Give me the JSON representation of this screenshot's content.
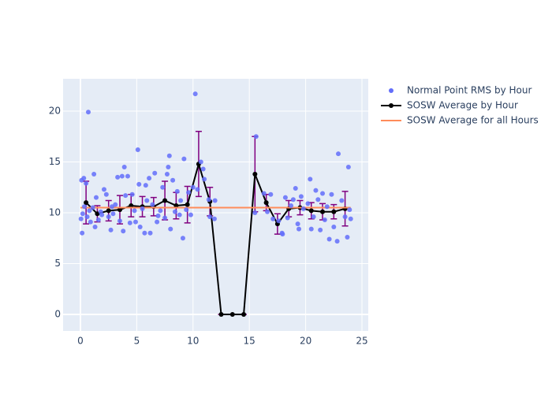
{
  "chart_data": {
    "type": "scatter-line",
    "xlim": [
      -1.54,
      25.56
    ],
    "ylim": [
      -1.63,
      23.18
    ],
    "xticks": [
      0,
      5,
      10,
      15,
      20,
      25
    ],
    "yticks": [
      0,
      5,
      10,
      15,
      20
    ],
    "grid": true,
    "legend": "top-right",
    "series": [
      {
        "name": "Normal Point RMS by Hour",
        "kind": "markers",
        "color": "#636efa",
        "x": [
          0.05,
          0.1,
          0.15,
          0.2,
          0.3,
          0.35,
          0.5,
          0.6,
          0.7,
          0.8,
          0.9,
          1.1,
          1.2,
          1.3,
          1.4,
          1.6,
          1.8,
          1.9,
          2.1,
          2.3,
          2.5,
          2.7,
          2.8,
          2.9,
          3.1,
          3.3,
          3.5,
          3.7,
          3.8,
          3.9,
          4.0,
          4.2,
          4.4,
          4.6,
          4.8,
          4.9,
          5.1,
          5.2,
          5.3,
          5.5,
          5.7,
          5.8,
          5.9,
          6.1,
          6.2,
          6.4,
          6.6,
          6.8,
          6.9,
          7.1,
          7.3,
          7.5,
          7.7,
          7.8,
          7.9,
          8.0,
          8.2,
          8.4,
          8.6,
          8.8,
          8.9,
          9.1,
          9.2,
          9.4,
          9.6,
          9.8,
          10.0,
          10.2,
          10.4,
          10.7,
          10.9,
          11.0,
          11.4,
          11.5,
          11.9,
          11.95,
          15.5,
          15.6,
          16.3,
          16.6,
          16.9,
          17.1,
          17.6,
          17.9,
          17.95,
          18.2,
          18.4,
          18.7,
          18.9,
          19.1,
          19.3,
          19.4,
          19.6,
          19.8,
          20.2,
          20.4,
          20.5,
          20.7,
          20.9,
          21.1,
          21.3,
          21.5,
          21.7,
          21.9,
          22.1,
          22.3,
          22.5,
          22.8,
          22.9,
          23.2,
          23.5,
          23.7,
          23.8,
          23.9,
          24.0
        ],
        "values": [
          9.4,
          13.2,
          8.0,
          9.9,
          13.4,
          10.6,
          12.9,
          9.6,
          19.9,
          10.2,
          9.1,
          10.5,
          13.8,
          8.6,
          11.5,
          9.3,
          10.1,
          9.8,
          12.3,
          11.8,
          9.6,
          8.3,
          10.6,
          9.9,
          10.8,
          13.5,
          9.2,
          13.6,
          8.2,
          14.5,
          11.7,
          13.6,
          9.0,
          11.8,
          10.2,
          9.1,
          16.2,
          12.8,
          8.6,
          10.4,
          8.0,
          12.7,
          11.2,
          13.4,
          8.0,
          10.8,
          13.9,
          9.1,
          9.7,
          10.2,
          12.5,
          9.5,
          13.8,
          14.5,
          15.6,
          8.4,
          13.2,
          10.1,
          12.1,
          9.8,
          11.2,
          7.5,
          15.3,
          10.3,
          12.0,
          9.8,
          12.5,
          21.7,
          12.3,
          15.0,
          14.3,
          13.3,
          11.3,
          9.6,
          9.4,
          11.2,
          10.0,
          17.5,
          11.9,
          10.1,
          11.8,
          9.4,
          9.2,
          8.0,
          7.9,
          11.5,
          9.5,
          10.7,
          11.3,
          12.4,
          8.9,
          8.4,
          11.6,
          10.4,
          10.9,
          13.3,
          8.4,
          9.6,
          12.2,
          11.3,
          8.3,
          11.9,
          9.3,
          10.6,
          7.4,
          11.8,
          8.6,
          7.2,
          15.8,
          11.2,
          9.6,
          7.6,
          14.5,
          10.3,
          9.4
        ]
      },
      {
        "name": "SOSW Average by Hour",
        "kind": "lines+markers",
        "color": "#000000",
        "error_color": "#800080",
        "x": [
          0.5,
          1.5,
          2.5,
          3.5,
          4.5,
          5.5,
          6.5,
          7.5,
          8.5,
          9.5,
          10.5,
          11.5,
          12.5,
          13.5,
          14.5,
          15.5,
          16.5,
          17.5,
          18.5,
          19.5,
          20.5,
          21.5,
          22.5,
          23.5
        ],
        "values": [
          11.0,
          9.9,
          10.2,
          10.3,
          10.7,
          10.6,
          10.6,
          11.2,
          10.7,
          10.8,
          14.8,
          11.1,
          0,
          0,
          0,
          13.8,
          11.0,
          8.9,
          10.4,
          10.5,
          10.2,
          10.1,
          10.1,
          10.4
        ],
        "errors": [
          2.1,
          0.8,
          1.0,
          1.4,
          1.1,
          1.0,
          0.9,
          1.9,
          1.3,
          1.8,
          3.2,
          1.4,
          0,
          0,
          0,
          3.7,
          0.8,
          1.0,
          0.8,
          0.7,
          0.8,
          0.8,
          0.7,
          1.7
        ]
      },
      {
        "name": "SOSW Average for all Hours",
        "kind": "lines",
        "color": "#ff8c5a",
        "x": [
          0,
          24
        ],
        "values": [
          10.5,
          10.5
        ]
      }
    ]
  }
}
